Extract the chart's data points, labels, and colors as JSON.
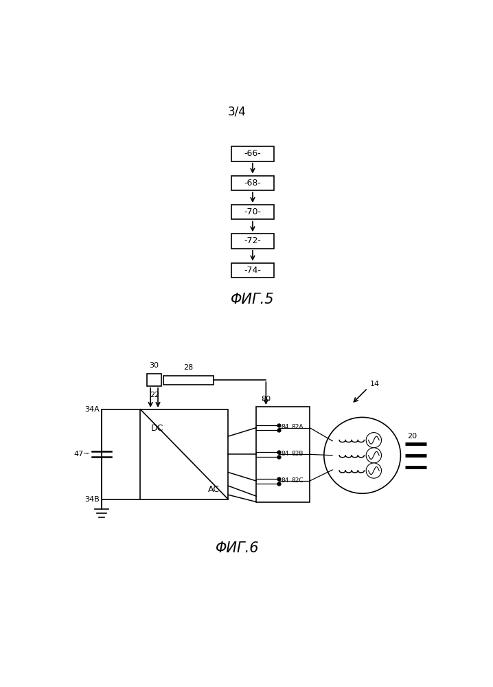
{
  "bg_color": "#ffffff",
  "page_label": "3/4",
  "fig5_label": "ΦИГ.5",
  "fig6_label": "ΦИГ.6",
  "flowchart_boxes": [
    "-66-",
    "-68-",
    "-70-",
    "-72-",
    "-74-"
  ],
  "label_34A": "34A",
  "label_34B": "34B",
  "label_47": "47",
  "label_22": "22",
  "label_28": "28",
  "label_30": "30",
  "label_80": "80",
  "label_84": "84",
  "label_82A": "82A",
  "label_82B": "82B",
  "label_82C": "82C",
  "label_14": "14",
  "label_20": "20",
  "label_DC": "DC",
  "label_AC": "AC"
}
